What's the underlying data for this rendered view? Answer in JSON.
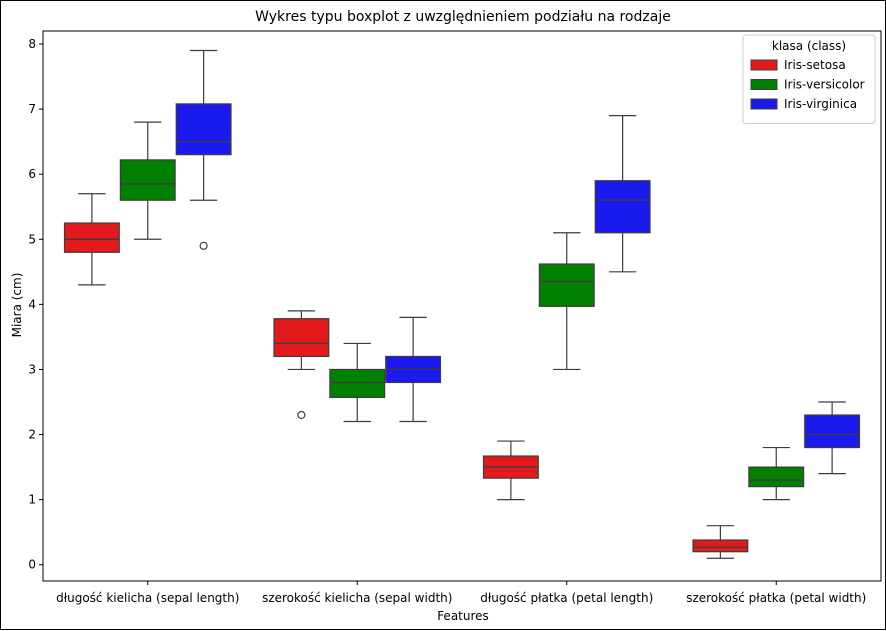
{
  "chart_data": {
    "type": "box",
    "title": "Wykres typu boxplot z uwzględnieniem podziału na rodzaje",
    "xlabel": "Features",
    "ylabel": "Miara (cm)",
    "ylim": [
      -0.25,
      8.2
    ],
    "yticks": [
      0,
      1,
      2,
      3,
      4,
      5,
      6,
      7,
      8
    ],
    "categories": [
      "długość kielicha (sepal length)",
      "szerokość kielicha (sepal width)",
      "długość płatka (petal length)",
      "szerokość płatka (petal width)"
    ],
    "legend": {
      "title": "klasa (class)",
      "position": "top-right"
    },
    "series": [
      {
        "name": "Iris-setosa",
        "color": "#e31a1c",
        "boxes": [
          {
            "whislo": 4.3,
            "q1": 4.8,
            "med": 5.0,
            "q3": 5.25,
            "whishi": 5.7,
            "fliers": []
          },
          {
            "whislo": 3.0,
            "q1": 3.2,
            "med": 3.4,
            "q3": 3.78,
            "whishi": 3.9,
            "fliers": [
              2.3
            ]
          },
          {
            "whislo": 1.0,
            "q1": 1.33,
            "med": 1.5,
            "q3": 1.67,
            "whishi": 1.9,
            "fliers": []
          },
          {
            "whislo": 0.1,
            "q1": 0.2,
            "med": 0.27,
            "q3": 0.38,
            "whishi": 0.6,
            "fliers": []
          }
        ]
      },
      {
        "name": "Iris-versicolor",
        "color": "#007f00",
        "boxes": [
          {
            "whislo": 5.0,
            "q1": 5.6,
            "med": 5.85,
            "q3": 6.22,
            "whishi": 6.8,
            "fliers": []
          },
          {
            "whislo": 2.2,
            "q1": 2.57,
            "med": 2.8,
            "q3": 3.0,
            "whishi": 3.4,
            "fliers": []
          },
          {
            "whislo": 3.0,
            "q1": 3.97,
            "med": 4.35,
            "q3": 4.62,
            "whishi": 5.1,
            "fliers": []
          },
          {
            "whislo": 1.0,
            "q1": 1.2,
            "med": 1.3,
            "q3": 1.5,
            "whishi": 1.8,
            "fliers": []
          }
        ]
      },
      {
        "name": "Iris-virginica",
        "color": "#1a1aef",
        "boxes": [
          {
            "whislo": 5.6,
            "q1": 6.3,
            "med": 6.5,
            "q3": 7.08,
            "whishi": 7.9,
            "fliers": [
              4.9
            ]
          },
          {
            "whislo": 2.2,
            "q1": 2.8,
            "med": 3.0,
            "q3": 3.2,
            "whishi": 3.8,
            "fliers": []
          },
          {
            "whislo": 4.5,
            "q1": 5.1,
            "med": 5.6,
            "q3": 5.9,
            "whishi": 6.9,
            "fliers": []
          },
          {
            "whislo": 1.4,
            "q1": 1.8,
            "med": 2.0,
            "q3": 2.3,
            "whishi": 2.5,
            "fliers": []
          }
        ]
      }
    ]
  }
}
